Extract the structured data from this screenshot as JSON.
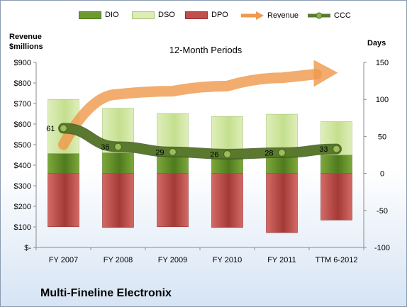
{
  "company": "Multi-Fineline Electronix",
  "chart_data": {
    "type": "bar",
    "subtitle": "12-Month Periods",
    "y_left_label": [
      "Revenue",
      "$millions"
    ],
    "y_right_label": "Days",
    "categories": [
      "FY 2007",
      "FY 2008",
      "FY 2009",
      "FY 2010",
      "FY 2011",
      "TTM 6-2012"
    ],
    "y_left_ticks": [
      "$-",
      "$100",
      "$200",
      "$300",
      "$400",
      "$500",
      "$600",
      "$700",
      "$800",
      "$900"
    ],
    "y_left_range": [
      0,
      900
    ],
    "y_right_ticks": [
      "-100",
      "-50",
      "0",
      "50",
      "100",
      "150"
    ],
    "y_right_range": [
      -100,
      150
    ],
    "grid": false,
    "legend_position": "top",
    "series": [
      {
        "name": "DIO",
        "kind": "stacked-bar",
        "values": [
          27,
          28,
          26,
          23,
          25,
          25
        ],
        "colors": [
          "#7da83a",
          "#4f7a1f"
        ]
      },
      {
        "name": "DSO",
        "kind": "stacked-bar",
        "values": [
          73,
          60,
          55,
          54,
          55,
          45
        ],
        "colors": [
          "#dfeebb",
          "#c4df8e"
        ]
      },
      {
        "name": "DPO",
        "kind": "negative-bar",
        "values": [
          -72,
          -73,
          -72,
          -73,
          -80,
          -63
        ],
        "colors": [
          "#d46a66",
          "#a33a36"
        ]
      },
      {
        "name": "Revenue",
        "kind": "trend-arrow",
        "values": [
          500,
          745,
          760,
          785,
          825,
          850
        ],
        "color": "#ef9a4d"
      },
      {
        "name": "CCC",
        "kind": "line",
        "values": [
          61,
          36,
          29,
          26,
          28,
          33
        ],
        "labels": [
          "61",
          "36",
          "29",
          "26",
          "28",
          "33"
        ],
        "color": "#5a7a2e"
      }
    ]
  }
}
